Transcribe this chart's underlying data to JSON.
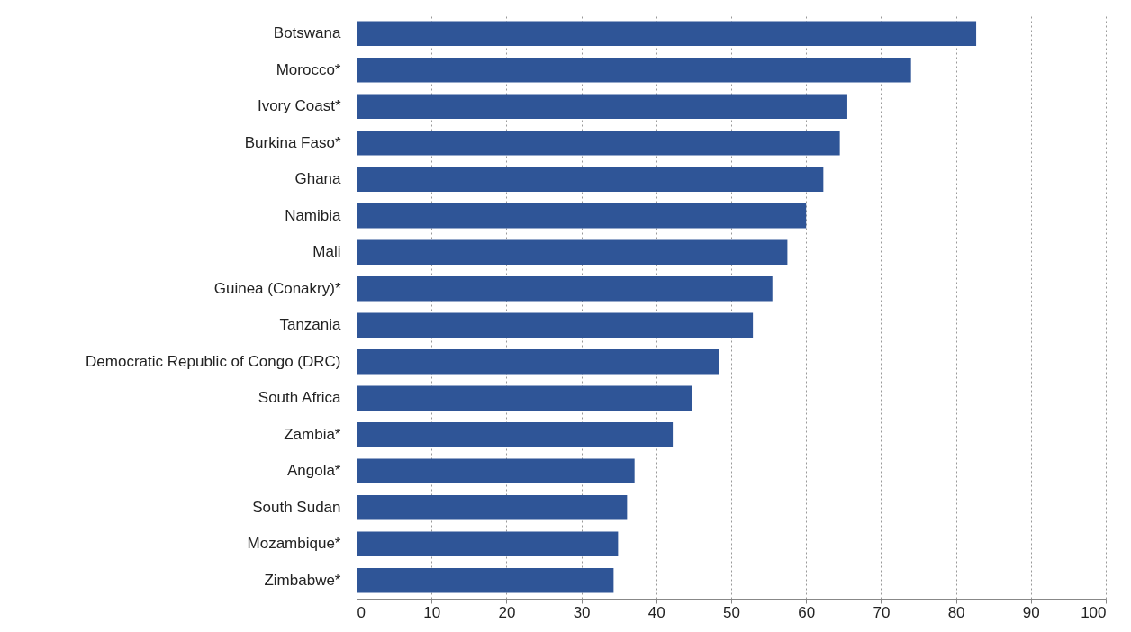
{
  "chart_data": {
    "type": "bar",
    "orientation": "horizontal",
    "categories": [
      "Botswana",
      "Morocco*",
      "Ivory Coast*",
      "Burkina Faso*",
      "Ghana",
      "Namibia",
      "Mali",
      "Guinea (Conakry)*",
      "Tanzania",
      "Democratic Republic of Congo (DRC)",
      "South Africa",
      "Zambia*",
      "Angola*",
      "South Sudan",
      "Mozambique*",
      "Zimbabwe*"
    ],
    "values": [
      82.7,
      74.0,
      65.5,
      64.5,
      62.3,
      60.0,
      57.5,
      55.5,
      52.9,
      48.4,
      44.8,
      42.2,
      37.1,
      36.1,
      34.9,
      34.3
    ],
    "color": "#2f5597",
    "xlim": [
      0,
      100
    ],
    "xticks": [
      0,
      10,
      20,
      30,
      40,
      50,
      60,
      70,
      80,
      90,
      100
    ],
    "grid": "x"
  }
}
